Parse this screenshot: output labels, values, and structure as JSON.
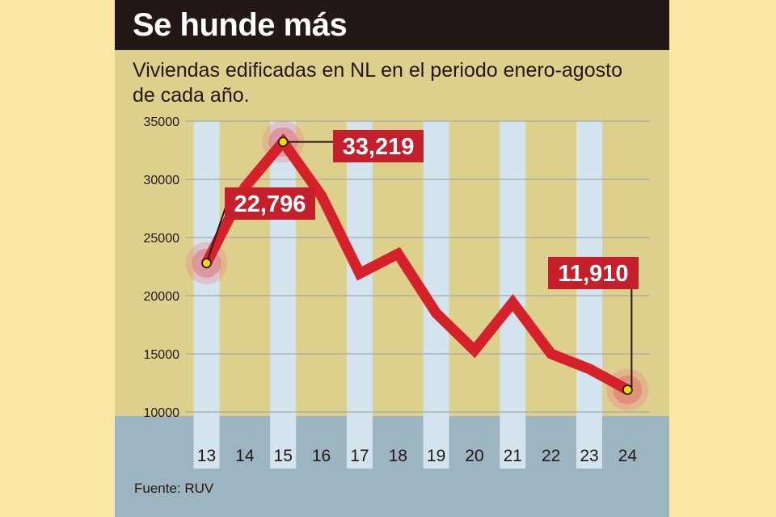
{
  "title": "Se hunde más",
  "subtitle": "Viviendas edificadas en NL en el periodo enero-agosto de cada año.",
  "source": "Fuente: RUV",
  "colors": {
    "page_background": "#fbe7a5",
    "panel_background": "#ddd08c",
    "title_bar": "#231815",
    "column_band": "#d3e4ee",
    "axis_band": "#9db5c0",
    "line": "#d6202a",
    "callout": "#c51f2b",
    "marker": "#f5d800",
    "gridline": "#a9a9a9"
  },
  "chart_data": {
    "type": "line",
    "title": "Se hunde más",
    "subtitle": "Viviendas edificadas en NL en el periodo enero-agosto de cada año.",
    "xlabel": "",
    "ylabel": "",
    "categories": [
      "13",
      "14",
      "15",
      "16",
      "17",
      "18",
      "19",
      "20",
      "21",
      "22",
      "23",
      "24"
    ],
    "yticks": [
      "35000",
      "30000",
      "25000",
      "20000",
      "15000",
      "10000"
    ],
    "ylim": [
      10000,
      35000
    ],
    "series": [
      {
        "values": [
          22796,
          29300,
          33219,
          28600,
          21900,
          23600,
          18500,
          15300,
          19400,
          15000,
          13700,
          11910
        ]
      }
    ],
    "annotations": [
      {
        "category": "13",
        "value": 22796,
        "label": "22,796"
      },
      {
        "category": "15",
        "value": 33219,
        "label": "33,219"
      },
      {
        "category": "24",
        "value": 11910,
        "label": "11,910"
      }
    ],
    "grid": true,
    "legend": "none"
  }
}
